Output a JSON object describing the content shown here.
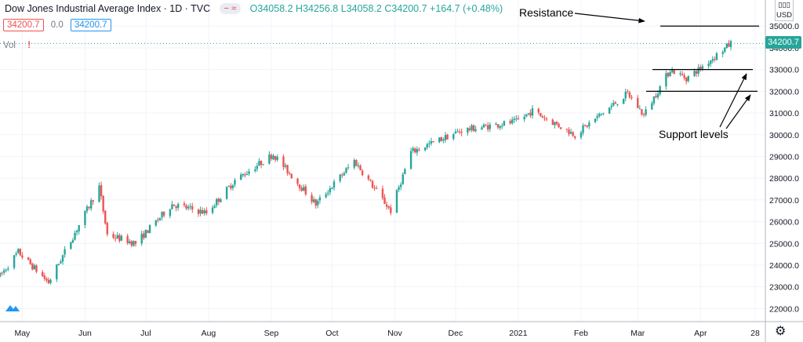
{
  "header": {
    "symbol": "Dow Jones Industrial Average Index · 1D · TVC",
    "ohlc": "O34058.2 H34256.8 L34058.2 C34200.7 +164.7 (+0.48%)",
    "pill": "− ≈",
    "badge_left": "34200.7",
    "badge_zero": "0.0",
    "badge_right": "34200.7",
    "vol": "Vol",
    "vol_dot": "!",
    "currency": "USD"
  },
  "annotations": {
    "resistance": "Resistance",
    "support": "Support levels"
  },
  "colors": {
    "up": "#26a69a",
    "down": "#ef5350",
    "grid": "#f0f3fa",
    "last_price": "#26a69a"
  },
  "icons": {
    "settings": "gear-icon",
    "logo": "tradingview-logo"
  },
  "chart_data": {
    "type": "candlestick",
    "ylim": [
      21400,
      36200
    ],
    "y_ticks": [
      22000,
      23000,
      24000,
      25000,
      26000,
      27000,
      28000,
      29000,
      30000,
      31000,
      32000,
      33000,
      34000,
      35000
    ],
    "y_tick_labels": [
      "22000.0",
      "23000.0",
      "24000.0",
      "25000.0",
      "26000.0",
      "27000.0",
      "28000.0",
      "29000.0",
      "30000.0",
      "31000.0",
      "32000.0",
      "33000.0",
      "34000.0",
      "35000.0"
    ],
    "x_tick_labels": [
      "May",
      "Jun",
      "Jul",
      "Aug",
      "Sep",
      "Oct",
      "Nov",
      "Dec",
      "2021",
      "Feb",
      "Mar",
      "Apr",
      "28"
    ],
    "x_tick_dates": [
      "2020-05-01",
      "2020-06-01",
      "2020-07-01",
      "2020-08-01",
      "2020-09-01",
      "2020-10-01",
      "2020-11-01",
      "2020-12-01",
      "2021-01-01",
      "2021-02-01",
      "2021-03-01",
      "2021-04-01",
      "2021-04-28"
    ],
    "last_price": 34200.7,
    "last_price_label": "34200.7",
    "resistance_level": 35000,
    "support_levels": [
      33000,
      32000
    ],
    "waypoints": [
      [
        "2020-04-20",
        23500
      ],
      [
        "2020-04-29",
        24600
      ],
      [
        "2020-05-14",
        23200
      ],
      [
        "2020-06-08",
        27600
      ],
      [
        "2020-06-12",
        25400
      ],
      [
        "2020-06-26",
        25000
      ],
      [
        "2020-07-14",
        26800
      ],
      [
        "2020-07-31",
        26400
      ],
      [
        "2020-08-14",
        27900
      ],
      [
        "2020-09-02",
        29100
      ],
      [
        "2020-09-23",
        26800
      ],
      [
        "2020-10-12",
        28800
      ],
      [
        "2020-10-30",
        26500
      ],
      [
        "2020-11-09",
        29200
      ],
      [
        "2020-12-04",
        30200
      ],
      [
        "2020-12-31",
        30600
      ],
      [
        "2021-01-08",
        31100
      ],
      [
        "2021-01-29",
        30000
      ],
      [
        "2021-02-24",
        31900
      ],
      [
        "2021-03-04",
        30900
      ],
      [
        "2021-03-17",
        33000
      ],
      [
        "2021-03-25",
        32600
      ],
      [
        "2021-03-31",
        33000
      ],
      [
        "2021-04-16",
        34200
      ]
    ]
  }
}
